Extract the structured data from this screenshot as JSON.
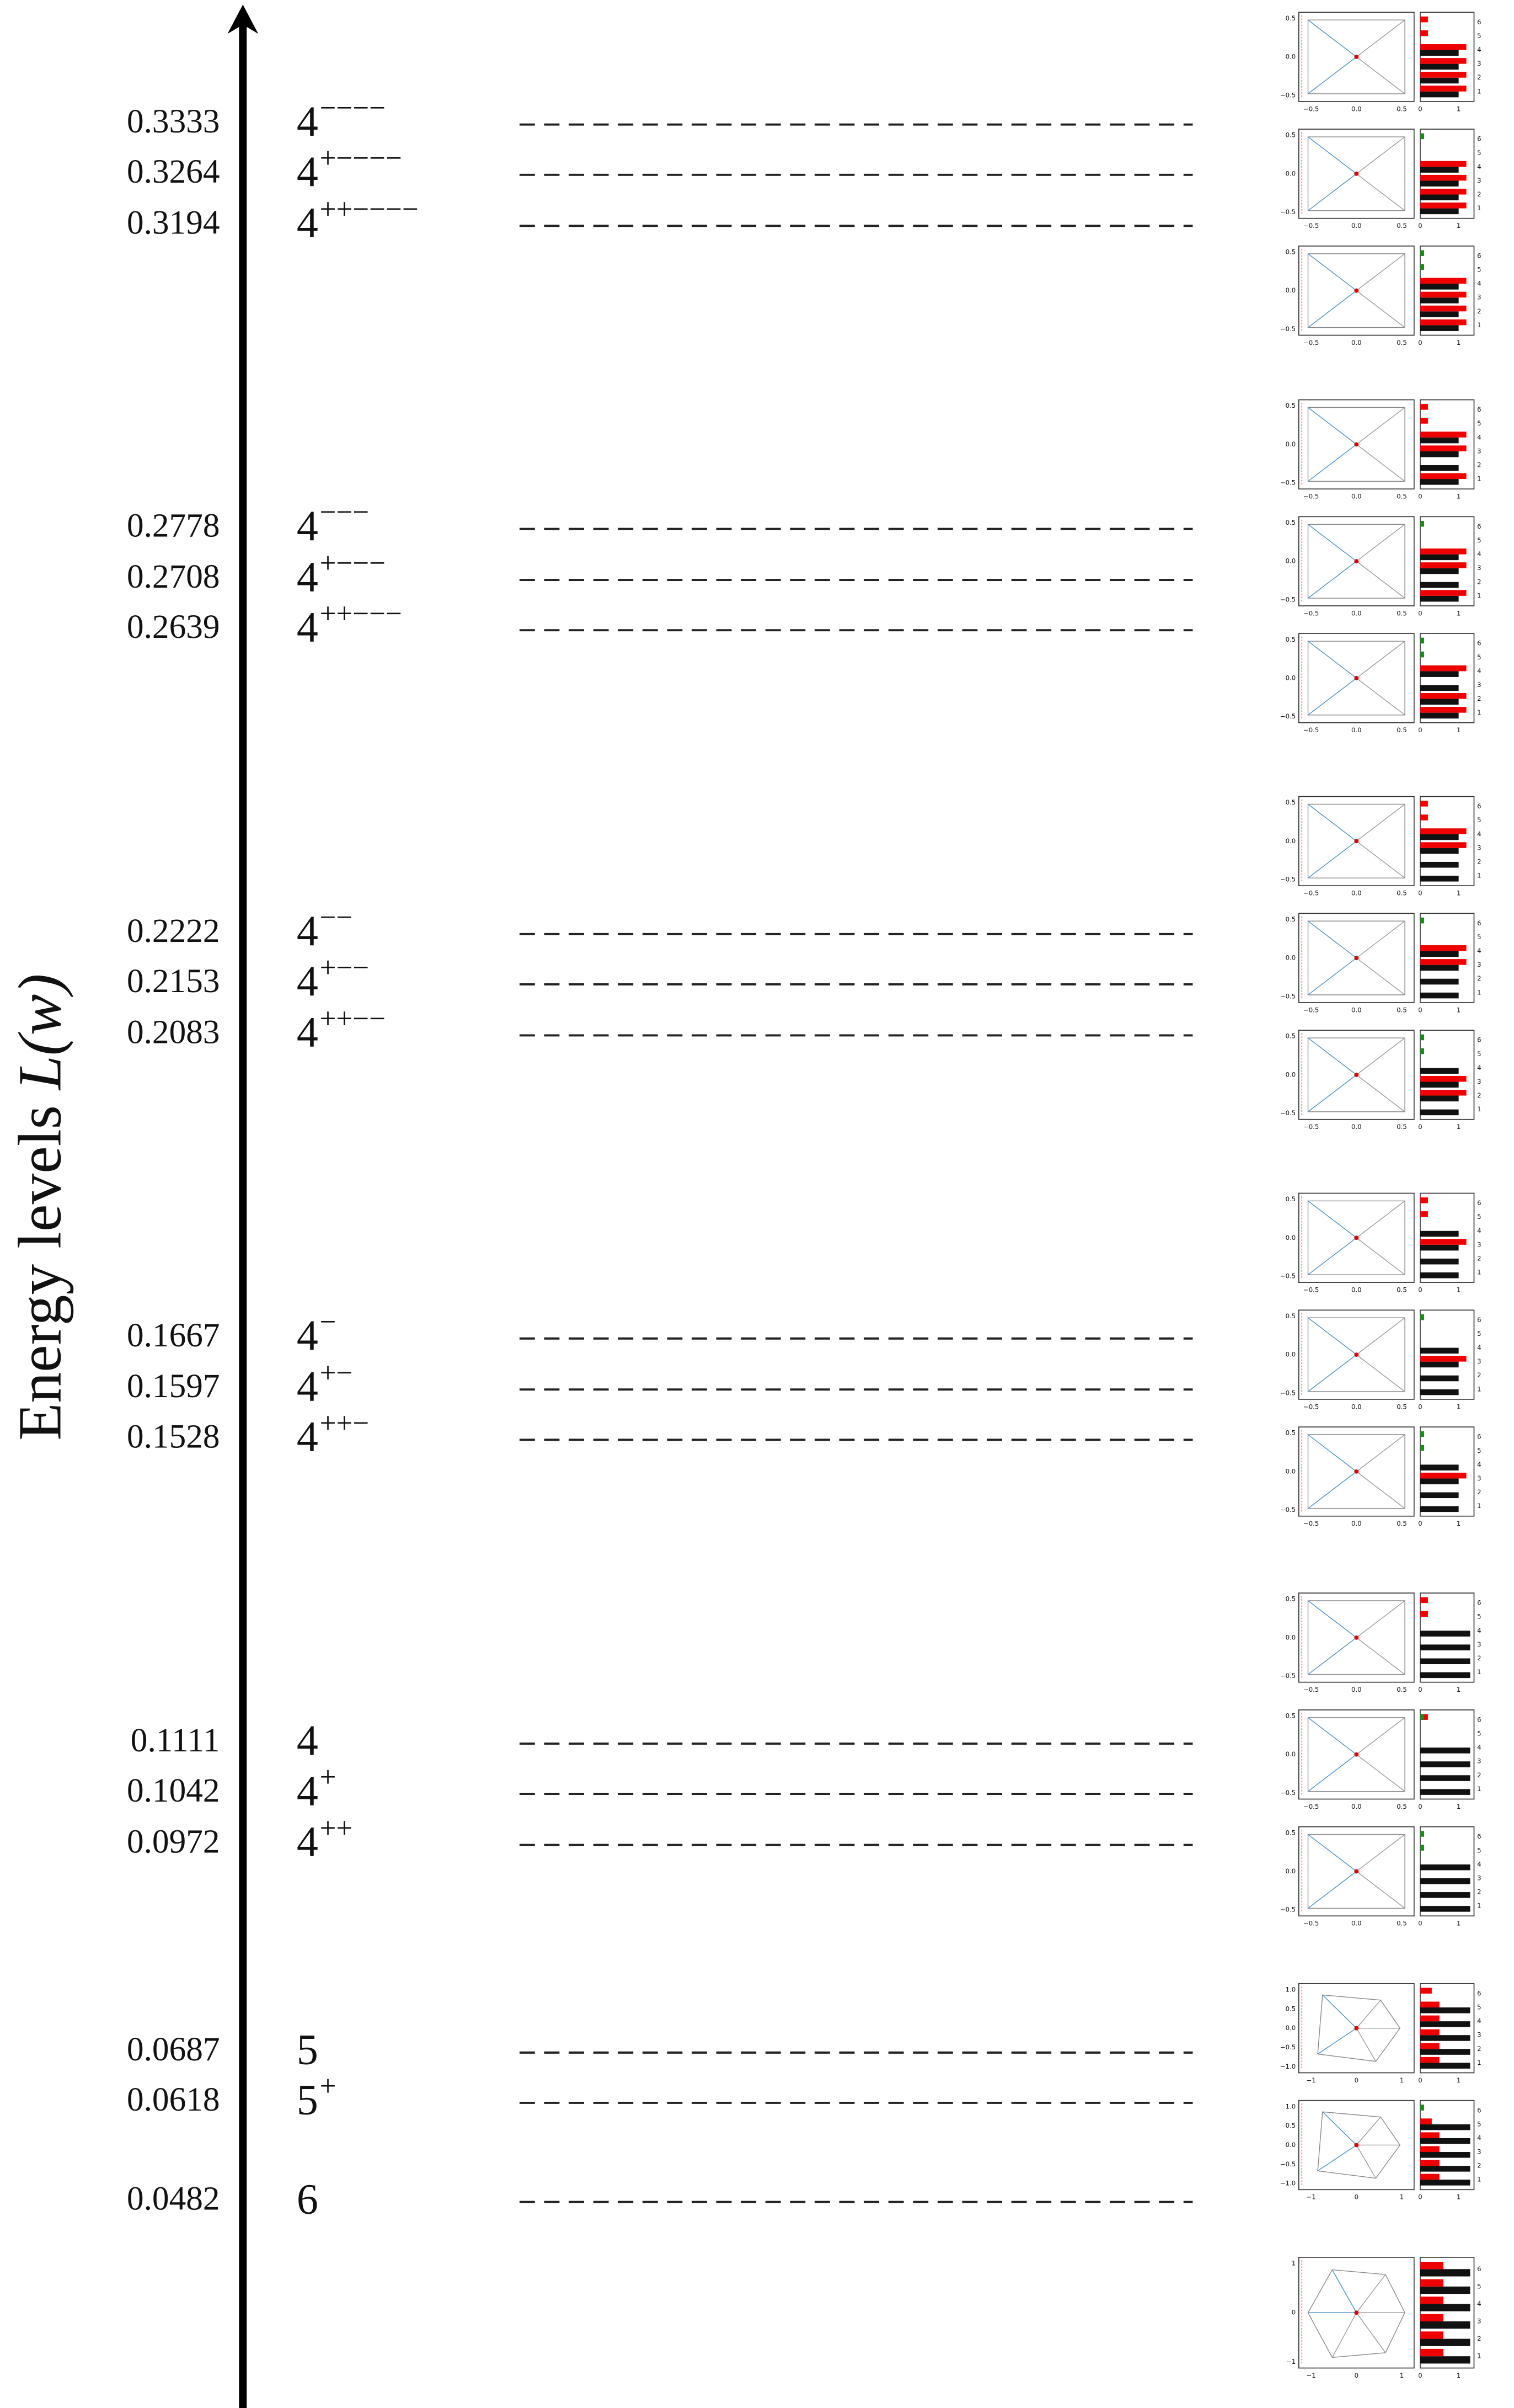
{
  "axis_label": {
    "text": "Energy levels",
    "symbol": "L(w)"
  },
  "levels": [
    {
      "value": 0.3333,
      "base": "4",
      "sup": "−−−−"
    },
    {
      "value": 0.3264,
      "base": "4",
      "sup": "+−−−−"
    },
    {
      "value": 0.3194,
      "base": "4",
      "sup": "++−−−−"
    },
    {
      "value": 0.2778,
      "base": "4",
      "sup": "−−−"
    },
    {
      "value": 0.2708,
      "base": "4",
      "sup": "+−−−"
    },
    {
      "value": 0.2639,
      "base": "4",
      "sup": "++−−−"
    },
    {
      "value": 0.2222,
      "base": "4",
      "sup": "−−"
    },
    {
      "value": 0.2153,
      "base": "4",
      "sup": "+−−"
    },
    {
      "value": 0.2083,
      "base": "4",
      "sup": "++−−"
    },
    {
      "value": 0.1667,
      "base": "4",
      "sup": "−"
    },
    {
      "value": 0.1597,
      "base": "4",
      "sup": "+−"
    },
    {
      "value": 0.1528,
      "base": "4",
      "sup": "++−"
    },
    {
      "value": 0.1111,
      "base": "4"
    },
    {
      "value": 0.1042,
      "base": "4",
      "sup": "+"
    },
    {
      "value": 0.0972,
      "base": "4",
      "sup": "++"
    },
    {
      "value": 0.0687,
      "base": "5"
    },
    {
      "value": 0.0618,
      "base": "5",
      "sup": "+"
    },
    {
      "value": 0.0482,
      "base": "6"
    }
  ],
  "thumb_axes": {
    "square": {
      "x": [
        "−0.5",
        "0.0",
        "0.5"
      ],
      "y": [
        "0.5",
        "0.0",
        "−0.5"
      ]
    },
    "pentagon": {
      "x": [
        "−1",
        "0",
        "1"
      ],
      "y": [
        "1.0",
        "0.5",
        "0.0",
        "−0.5",
        "−1.0"
      ]
    },
    "hexagon": {
      "x": [
        "−1",
        "0",
        "1"
      ],
      "y": [
        "1",
        "0",
        "−1"
      ]
    }
  },
  "bar_xticks": [
    0,
    1
  ],
  "bar_yticks": [
    1,
    2,
    3,
    4,
    5,
    6
  ],
  "panels": [
    {
      "shape": "square",
      "black": [
        1,
        1,
        1,
        1,
        0,
        0
      ],
      "red": [
        1.2,
        1.2,
        1.2,
        1.2,
        0.2,
        0.2
      ]
    },
    {
      "shape": "square",
      "black": [
        1,
        1,
        1,
        1,
        0,
        0
      ],
      "red": [
        1.2,
        1.2,
        1.2,
        1.2,
        0,
        0
      ],
      "green": [
        0,
        0,
        0,
        0,
        0,
        0.1
      ]
    },
    {
      "shape": "square",
      "black": [
        1,
        1,
        1,
        1,
        0,
        0
      ],
      "red": [
        1.2,
        1.2,
        1.2,
        1.2,
        0,
        0
      ],
      "green": [
        0,
        0,
        0,
        0,
        0.1,
        0.1
      ]
    },
    {
      "shape": "square",
      "black": [
        1,
        1,
        1,
        1,
        0,
        0
      ],
      "red": [
        1.2,
        0,
        1.2,
        1.2,
        0.2,
        0.2
      ]
    },
    {
      "shape": "square",
      "black": [
        1,
        1,
        1,
        1,
        0,
        0
      ],
      "red": [
        1.2,
        0,
        1.2,
        1.2,
        0,
        0
      ],
      "green": [
        0,
        0,
        0,
        0,
        0,
        0.1
      ]
    },
    {
      "shape": "square",
      "black": [
        1,
        1,
        1,
        1,
        0,
        0
      ],
      "red": [
        1.2,
        1.2,
        0,
        1.2,
        0,
        0
      ],
      "green": [
        0,
        0,
        0,
        0,
        0.1,
        0.1
      ]
    },
    {
      "shape": "square",
      "black": [
        1,
        1,
        1,
        1,
        0,
        0
      ],
      "red": [
        0,
        0,
        1.2,
        1.2,
        0.2,
        0.2
      ]
    },
    {
      "shape": "square",
      "black": [
        1,
        1,
        1,
        1,
        0,
        0
      ],
      "red": [
        0,
        0,
        1.2,
        1.2,
        0,
        0
      ],
      "green": [
        0,
        0,
        0,
        0,
        0,
        0.1
      ]
    },
    {
      "shape": "square",
      "black": [
        1,
        1,
        1,
        1,
        0,
        0
      ],
      "red": [
        0,
        1.2,
        1.2,
        0,
        0,
        0
      ],
      "green": [
        0,
        0,
        0,
        0,
        0.1,
        0.1
      ]
    },
    {
      "shape": "square",
      "black": [
        1,
        1,
        1,
        1,
        0,
        0
      ],
      "red": [
        0,
        0,
        1.2,
        0,
        0.2,
        0.2
      ]
    },
    {
      "shape": "square",
      "black": [
        1,
        1,
        1,
        1,
        0,
        0
      ],
      "red": [
        0,
        0,
        1.2,
        0,
        0,
        0
      ],
      "green": [
        0,
        0,
        0,
        0,
        0,
        0.1
      ]
    },
    {
      "shape": "square",
      "black": [
        1,
        1,
        1,
        1,
        0,
        0
      ],
      "red": [
        0,
        0,
        1.2,
        0,
        0,
        0
      ],
      "green": [
        0,
        0,
        0,
        0,
        0.1,
        0.1
      ]
    },
    {
      "shape": "square",
      "black": [
        1.3,
        1.3,
        1.3,
        1.3,
        0,
        0
      ],
      "red": [
        0,
        0,
        0,
        0,
        0.2,
        0.2
      ]
    },
    {
      "shape": "square",
      "black": [
        1.3,
        1.3,
        1.3,
        1.3,
        0,
        0
      ],
      "red": [
        0,
        0,
        0,
        0,
        0,
        0.2
      ],
      "green": [
        0,
        0,
        0,
        0,
        0,
        0.1
      ]
    },
    {
      "shape": "square",
      "black": [
        1.3,
        1.3,
        1.3,
        1.3,
        0,
        0
      ],
      "green": [
        0,
        0,
        0,
        0,
        0.1,
        0.1
      ]
    },
    {
      "shape": "pentagon",
      "black": [
        1.3,
        1.3,
        1.3,
        1.3,
        1.3,
        0
      ],
      "red": [
        0.5,
        0.5,
        0.5,
        0.5,
        0.5,
        0.3
      ]
    },
    {
      "shape": "pentagon",
      "black": [
        1.3,
        1.3,
        1.3,
        1.3,
        1.3,
        0
      ],
      "red": [
        0.5,
        0.5,
        0.5,
        0.5,
        0.3,
        0
      ],
      "green": [
        0,
        0,
        0,
        0,
        0,
        0.1
      ]
    },
    {
      "shape": "hexagon",
      "black": [
        1.3,
        1.3,
        1.3,
        1.3,
        1.3,
        1.3
      ],
      "red": [
        0.6,
        0.6,
        0.6,
        0.6,
        0.6,
        0.6
      ]
    }
  ]
}
